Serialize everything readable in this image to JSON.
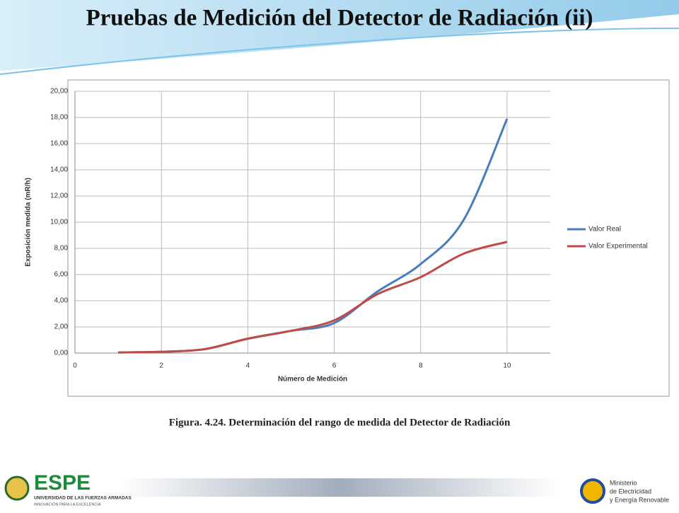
{
  "slide_title": "Pruebas de Medición del Detector de Radiación (ii)",
  "caption": "Figura. 4.24. Determinación del rango de medida del Detector de Radiación",
  "footer": {
    "logo_text": "ESPE",
    "university": "UNIVERSIDAD DE LAS FUERZAS ARMADAS",
    "motto": "INNOVACIÓN PARA LA EXCELENCIA",
    "ministry": [
      "Ministerio",
      "de Electricidad",
      "y Energía Renovable"
    ]
  },
  "chart_data": {
    "type": "line",
    "x_label": "Número de Medición",
    "y_label": "Exposición medida (mR/h)",
    "x": [
      1,
      2,
      3,
      4,
      5,
      6,
      7,
      8,
      9,
      10
    ],
    "series": [
      {
        "name": "Valor Real",
        "color": "#4a7ebb",
        "values": [
          0.05,
          0.1,
          0.3,
          1.1,
          1.7,
          2.3,
          4.7,
          6.8,
          10.2,
          17.9
        ]
      },
      {
        "name": "Valor Experimental",
        "color": "#be4b48",
        "values": [
          0.05,
          0.1,
          0.3,
          1.1,
          1.7,
          2.5,
          4.5,
          5.8,
          7.6,
          8.5
        ]
      }
    ],
    "xlim": [
      0,
      11
    ],
    "xticks": [
      0,
      2,
      4,
      6,
      8,
      10
    ],
    "ylim": [
      0,
      20
    ],
    "yticks": [
      {
        "value": 0,
        "label": "0,00"
      },
      {
        "value": 2,
        "label": "2,00"
      },
      {
        "value": 4,
        "label": "4,00"
      },
      {
        "value": 6,
        "label": "6,00"
      },
      {
        "value": 8,
        "label": "8,00"
      },
      {
        "value": 10,
        "label": "10,00"
      },
      {
        "value": 12,
        "label": "12,00"
      },
      {
        "value": 14,
        "label": "14,00"
      },
      {
        "value": 16,
        "label": "16,00"
      },
      {
        "value": 18,
        "label": "18,00"
      },
      {
        "value": 20,
        "label": "20,00"
      }
    ],
    "grid": true,
    "legend": "right"
  }
}
